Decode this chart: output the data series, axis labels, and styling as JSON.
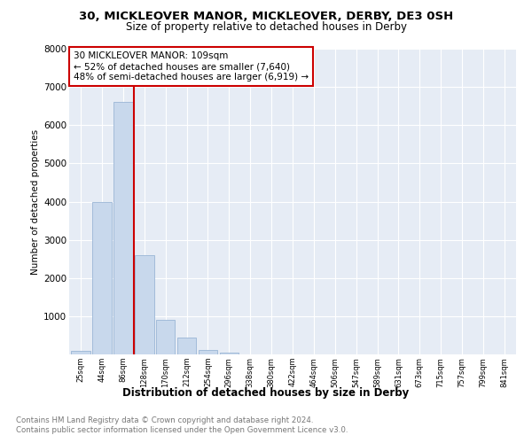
{
  "title": "30, MICKLEOVER MANOR, MICKLEOVER, DERBY, DE3 0SH",
  "subtitle": "Size of property relative to detached houses in Derby",
  "xlabel": "Distribution of detached houses by size in Derby",
  "ylabel": "Number of detached properties",
  "footnote1": "Contains HM Land Registry data © Crown copyright and database right 2024.",
  "footnote2": "Contains public sector information licensed under the Open Government Licence v3.0.",
  "annotation_line1": "30 MICKLEOVER MANOR: 109sqm",
  "annotation_line2": "← 52% of detached houses are smaller (7,640)",
  "annotation_line3": "48% of semi-detached houses are larger (6,919) →",
  "bar_color": "#c8d8ec",
  "bar_edge_color": "#9ab5d5",
  "plot_bg_color": "#e6ecf5",
  "vline_color": "#cc0000",
  "categories": [
    "25sqm",
    "44sqm",
    "86sqm",
    "128sqm",
    "170sqm",
    "212sqm",
    "254sqm",
    "296sqm",
    "338sqm",
    "380sqm",
    "422sqm",
    "464sqm",
    "506sqm",
    "547sqm",
    "589sqm",
    "631sqm",
    "673sqm",
    "715sqm",
    "757sqm",
    "799sqm",
    "841sqm"
  ],
  "values": [
    100,
    4000,
    6600,
    2600,
    900,
    450,
    120,
    50,
    10,
    0,
    0,
    0,
    0,
    0,
    0,
    0,
    0,
    0,
    0,
    0,
    0
  ],
  "vline_position": 2.5,
  "ylim": [
    0,
    8000
  ],
  "yticks": [
    0,
    1000,
    2000,
    3000,
    4000,
    5000,
    6000,
    7000,
    8000
  ]
}
